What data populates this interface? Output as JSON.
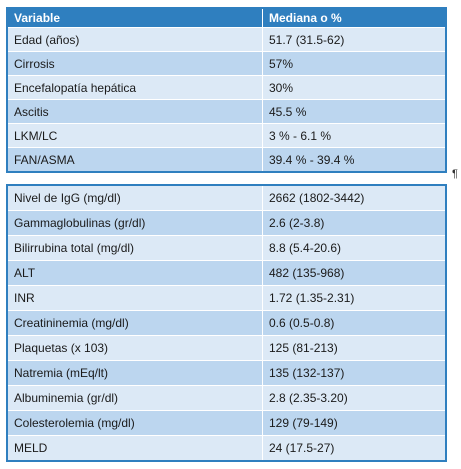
{
  "table": {
    "header": [
      "Variable",
      "Mediana o %"
    ],
    "sections": [
      [
        [
          "Edad (años)",
          "51.7 (31.5-62)"
        ],
        [
          "Cirrosis",
          "57%"
        ],
        [
          "Encefalopatía hepática",
          "30%"
        ],
        [
          "Ascitis",
          "45.5 %"
        ],
        [
          "LKM/LC",
          "3 % - 6.1 %"
        ],
        [
          "FAN/ASMA",
          "39.4 % - 39.4 %"
        ]
      ],
      [
        [
          "Nivel de IgG (mg/dl)",
          "2662 (1802-3442)"
        ],
        [
          "Gammaglobulinas (gr/dl)",
          "2.6 (2-3.8)"
        ],
        [
          "Bilirrubina total (mg/dl)",
          "8.8 (5.4-20.6)"
        ],
        [
          "ALT",
          "482 (135-968)"
        ],
        [
          "INR",
          "1.72 (1.35-2.31)"
        ],
        [
          "Creatininemia (mg/dl)",
          "0.6 (0.5-0.8)"
        ],
        [
          "Plaquetas (x 103)",
          "125 (81-213)"
        ],
        [
          "Natremia (mEq/lt)",
          "135 (132-137)"
        ],
        [
          "Albuminemia (gr/dl)",
          "2.8 (2.35-3.20)"
        ],
        [
          "Colesterolemia (mg/dl)",
          "129 (79-149)"
        ],
        [
          "MELD",
          "24 (17.5-27)"
        ]
      ]
    ],
    "pilcrow": "¶"
  }
}
